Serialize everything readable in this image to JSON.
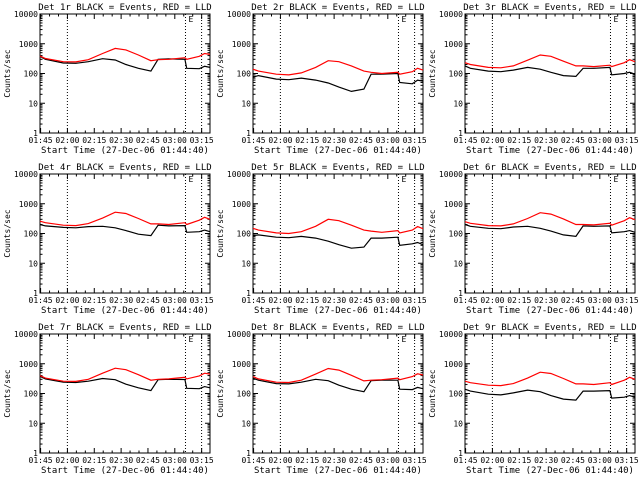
{
  "figure": {
    "x_tick_labels": [
      "01:45",
      "02:00",
      "02:15",
      "02:30",
      "02:45",
      "03:00",
      "03:15"
    ],
    "xlabel": "Start Time (27-Dec-06 01:44:40)",
    "ylabel": "Counts/sec",
    "y_tick_labels": [
      "1",
      "10",
      "100",
      "1000",
      "10000"
    ]
  },
  "colors": {
    "events": "#000000",
    "lld": "#ff0000",
    "axis": "#000000"
  },
  "chart_data": [
    {
      "type": "line",
      "title": "Det 1r BLACK = Events, RED = LLD",
      "xlabel": "Start Time (27-Dec-06 01:44:40)",
      "ylabel": "Counts/sec",
      "x_unit": "minutes since 01:44:40",
      "xlim": [
        0,
        95
      ],
      "ylim": [
        1,
        10000
      ],
      "y_scale": "log",
      "vlines_min": [
        15.3,
        81.3,
        90.3
      ],
      "x": [
        0,
        3,
        13,
        20,
        27,
        35,
        42,
        48,
        55,
        62,
        66,
        72,
        81,
        82,
        89,
        92,
        95
      ],
      "series": [
        {
          "name": "Events",
          "values": [
            380,
            300,
            225,
            220,
            250,
            315,
            285,
            200,
            150,
            120,
            300,
            310,
            300,
            150,
            145,
            175,
            160
          ]
        },
        {
          "name": "LLD",
          "values": [
            390,
            320,
            250,
            245,
            290,
            470,
            700,
            620,
            420,
            270,
            290,
            300,
            340,
            300,
            380,
            470,
            440
          ]
        }
      ]
    },
    {
      "type": "line",
      "title": "Det 2r BLACK = Events, RED = LLD",
      "xlabel": "Start Time (27-Dec-06 01:44:40)",
      "ylabel": "Counts/sec",
      "x_unit": "minutes since 01:44:40",
      "xlim": [
        0,
        95
      ],
      "ylim": [
        1,
        10000
      ],
      "y_scale": "log",
      "vlines_min": [
        15.3,
        81.3,
        90.3
      ],
      "x": [
        0,
        3,
        13,
        20,
        27,
        35,
        42,
        48,
        55,
        62,
        66,
        72,
        81,
        82,
        89,
        92,
        95
      ],
      "series": [
        {
          "name": "Events",
          "values": [
            75,
            85,
            65,
            62,
            70,
            60,
            48,
            35,
            25,
            30,
            95,
            95,
            100,
            50,
            45,
            60,
            55
          ]
        },
        {
          "name": "LLD",
          "values": [
            140,
            120,
            95,
            90,
            105,
            160,
            270,
            250,
            180,
            120,
            110,
            100,
            110,
            95,
            115,
            150,
            130
          ]
        }
      ]
    },
    {
      "type": "line",
      "title": "Det 3r BLACK = Events, RED = LLD",
      "xlabel": "Start Time (27-Dec-06 01:44:40)",
      "ylabel": "Counts/sec",
      "x_unit": "minutes since 01:44:40",
      "xlim": [
        0,
        95
      ],
      "ylim": [
        1,
        10000
      ],
      "y_scale": "log",
      "vlines_min": [
        15.3,
        81.3,
        90.3
      ],
      "x": [
        0,
        3,
        13,
        20,
        27,
        35,
        42,
        48,
        55,
        62,
        66,
        72,
        81,
        82,
        89,
        92,
        95
      ],
      "series": [
        {
          "name": "Events",
          "values": [
            180,
            150,
            120,
            115,
            130,
            160,
            140,
            110,
            85,
            80,
            150,
            150,
            160,
            90,
            100,
            110,
            95
          ]
        },
        {
          "name": "LLD",
          "values": [
            230,
            200,
            160,
            155,
            180,
            280,
            420,
            380,
            260,
            180,
            180,
            170,
            190,
            170,
            230,
            290,
            250
          ]
        }
      ]
    },
    {
      "type": "line",
      "title": "Det 4r BLACK = Events, RED = LLD",
      "xlabel": "Start Time (27-Dec-06 01:44:40)",
      "ylabel": "Counts/sec",
      "x_unit": "minutes since 01:44:40",
      "xlim": [
        0,
        95
      ],
      "ylim": [
        1,
        10000
      ],
      "y_scale": "log",
      "vlines_min": [
        15.3,
        81.3,
        90.3
      ],
      "x": [
        0,
        3,
        13,
        20,
        27,
        35,
        42,
        48,
        55,
        62,
        66,
        72,
        81,
        82,
        89,
        92,
        95
      ],
      "series": [
        {
          "name": "Events",
          "values": [
            200,
            180,
            160,
            155,
            170,
            175,
            155,
            125,
            95,
            85,
            190,
            180,
            185,
            110,
            115,
            130,
            115
          ]
        },
        {
          "name": "LLD",
          "values": [
            260,
            230,
            190,
            185,
            215,
            330,
            520,
            470,
            320,
            210,
            210,
            200,
            230,
            200,
            280,
            350,
            300
          ]
        }
      ]
    },
    {
      "type": "line",
      "title": "Det 5r BLACK = Events, RED = LLD",
      "xlabel": "Start Time (27-Dec-06 01:44:40)",
      "ylabel": "Counts/sec",
      "x_unit": "minutes since 01:44:40",
      "xlim": [
        0,
        95
      ],
      "ylim": [
        1,
        10000
      ],
      "y_scale": "log",
      "vlines_min": [
        15.3,
        81.3,
        90.3
      ],
      "x": [
        0,
        3,
        13,
        20,
        27,
        35,
        42,
        48,
        55,
        62,
        66,
        72,
        81,
        82,
        89,
        92,
        95
      ],
      "series": [
        {
          "name": "Events",
          "values": [
            85,
            90,
            75,
            72,
            80,
            70,
            55,
            42,
            32,
            35,
            70,
            70,
            75,
            40,
            45,
            50,
            42
          ]
        },
        {
          "name": "LLD",
          "values": [
            150,
            130,
            105,
            100,
            115,
            175,
            300,
            270,
            190,
            130,
            120,
            110,
            125,
            105,
            130,
            170,
            145
          ]
        }
      ]
    },
    {
      "type": "line",
      "title": "Det 6r BLACK = Events, RED = LLD",
      "xlabel": "Start Time (27-Dec-06 01:44:40)",
      "ylabel": "Counts/sec",
      "x_unit": "minutes since 01:44:40",
      "xlim": [
        0,
        95
      ],
      "ylim": [
        1,
        10000
      ],
      "y_scale": "log",
      "vlines_min": [
        15.3,
        81.3,
        90.3
      ],
      "x": [
        0,
        3,
        13,
        20,
        27,
        35,
        42,
        48,
        55,
        62,
        66,
        72,
        81,
        82,
        89,
        92,
        95
      ],
      "series": [
        {
          "name": "Events",
          "values": [
            200,
            175,
            150,
            145,
            165,
            175,
            150,
            120,
            90,
            80,
            180,
            175,
            180,
            105,
            115,
            125,
            110
          ]
        },
        {
          "name": "LLD",
          "values": [
            250,
            220,
            185,
            180,
            210,
            320,
            500,
            450,
            310,
            200,
            200,
            195,
            220,
            190,
            270,
            340,
            290
          ]
        }
      ]
    },
    {
      "type": "line",
      "title": "Det 7r BLACK = Events, RED = LLD",
      "xlabel": "Start Time (27-Dec-06 01:44:40)",
      "ylabel": "Counts/sec",
      "x_unit": "minutes since 01:44:40",
      "xlim": [
        0,
        95
      ],
      "ylim": [
        1,
        10000
      ],
      "y_scale": "log",
      "vlines_min": [
        15.3,
        81.3,
        90.3
      ],
      "x": [
        0,
        3,
        13,
        20,
        27,
        35,
        42,
        48,
        55,
        62,
        66,
        72,
        81,
        82,
        89,
        92,
        95
      ],
      "series": [
        {
          "name": "Events",
          "values": [
            380,
            310,
            240,
            235,
            260,
            320,
            290,
            205,
            155,
            125,
            290,
            300,
            295,
            150,
            145,
            170,
            155
          ]
        },
        {
          "name": "LLD",
          "values": [
            400,
            330,
            260,
            255,
            300,
            480,
            710,
            630,
            430,
            280,
            300,
            310,
            350,
            310,
            390,
            480,
            450
          ]
        }
      ]
    },
    {
      "type": "line",
      "title": "Det 8r BLACK = Events, RED = LLD",
      "xlabel": "Start Time (27-Dec-06 01:44:40)",
      "ylabel": "Counts/sec",
      "x_unit": "minutes since 01:44:40",
      "xlim": [
        0,
        95
      ],
      "ylim": [
        1,
        10000
      ],
      "y_scale": "log",
      "vlines_min": [
        15.3,
        81.3,
        90.3
      ],
      "x": [
        0,
        3,
        13,
        20,
        27,
        35,
        42,
        48,
        55,
        62,
        66,
        72,
        81,
        82,
        89,
        92,
        95
      ],
      "series": [
        {
          "name": "Events",
          "values": [
            330,
            280,
            215,
            210,
            240,
            300,
            270,
            190,
            140,
            115,
            270,
            280,
            280,
            140,
            135,
            160,
            145
          ]
        },
        {
          "name": "LLD",
          "values": [
            370,
            310,
            240,
            235,
            280,
            450,
            690,
            610,
            410,
            265,
            280,
            290,
            330,
            290,
            370,
            460,
            420
          ]
        }
      ]
    },
    {
      "type": "line",
      "title": "Det 9r BLACK = Events, RED = LLD",
      "xlabel": "Start Time (27-Dec-06 01:44:40)",
      "ylabel": "Counts/sec",
      "x_unit": "minutes since 01:44:40",
      "xlim": [
        0,
        95
      ],
      "ylim": [
        1,
        10000
      ],
      "y_scale": "log",
      "vlines_min": [
        15.3,
        81.3,
        90.3
      ],
      "x": [
        0,
        3,
        13,
        20,
        27,
        35,
        42,
        48,
        55,
        62,
        66,
        72,
        81,
        82,
        89,
        92,
        95
      ],
      "series": [
        {
          "name": "Events",
          "values": [
            140,
            120,
            95,
            90,
            105,
            130,
            115,
            85,
            65,
            60,
            120,
            120,
            125,
            70,
            75,
            85,
            75
          ]
        },
        {
          "name": "LLD",
          "values": [
            260,
            230,
            190,
            185,
            215,
            330,
            520,
            470,
            320,
            210,
            210,
            200,
            230,
            200,
            280,
            350,
            300
          ]
        }
      ]
    }
  ]
}
